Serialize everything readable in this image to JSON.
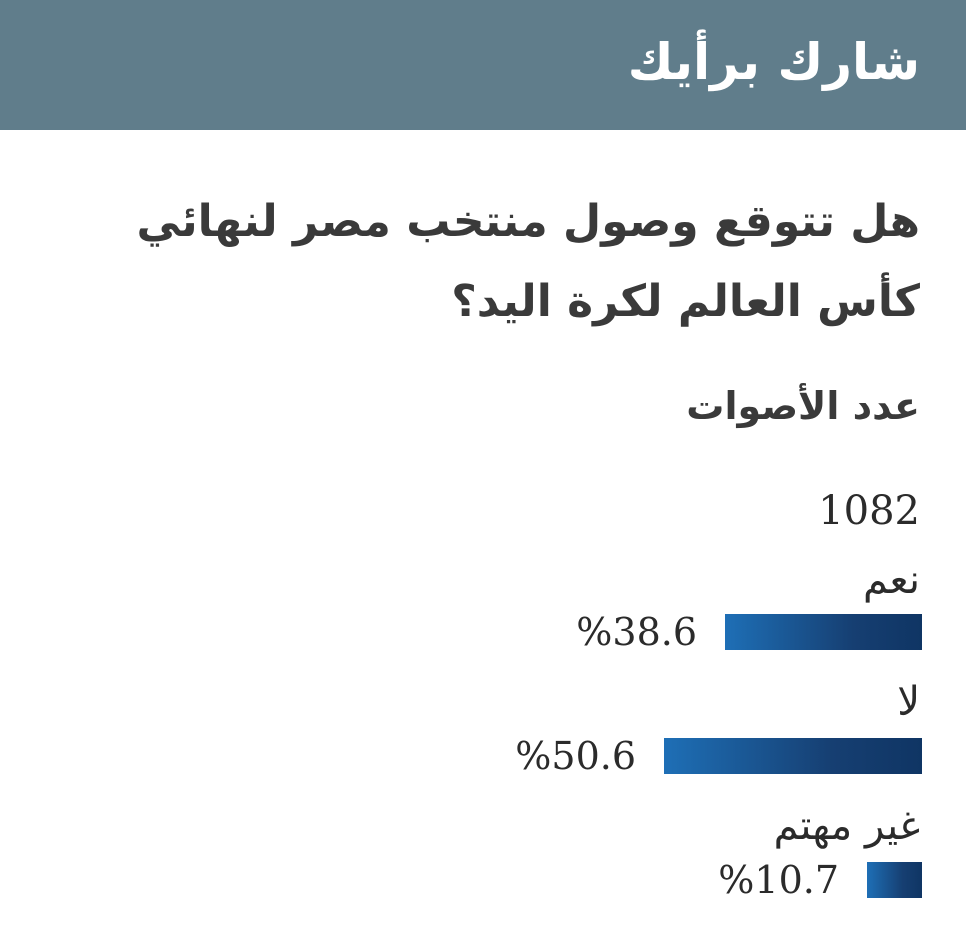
{
  "header": {
    "title": "شارك برأيك",
    "background_color": "#607d8b"
  },
  "poll": {
    "question": "هل تتوقع وصول منتخب مصر لنهائي كأس العالم لكرة اليد؟",
    "votes_label": "عدد الأصوات",
    "votes_count": "1082",
    "percent_symbol": "%",
    "bar_colors": [
      "#1e6fb6",
      "#0f3564"
    ],
    "options": [
      {
        "label": "نعم",
        "percent": "38.6",
        "fraction": 0.386
      },
      {
        "label": "لا",
        "percent": "50.6",
        "fraction": 0.506
      },
      {
        "label": "غير مهتم",
        "percent": "10.7",
        "fraction": 0.107
      }
    ]
  }
}
